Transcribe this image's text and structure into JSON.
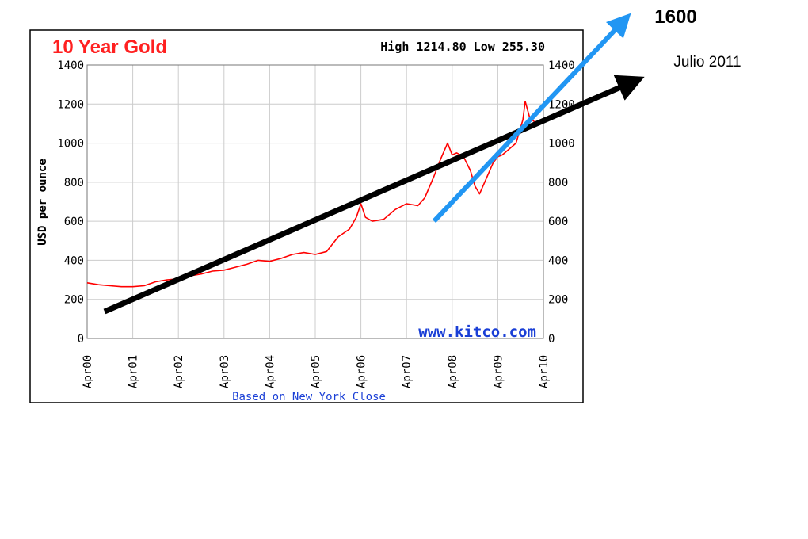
{
  "chart_data": {
    "type": "line",
    "title": "10 Year Gold",
    "stats": "High 1214.80 Low 255.30",
    "ylabel": "USD per ounce",
    "watermark": "www.kitco.com",
    "caption": "Based on New York Close",
    "ylim": [
      0,
      1400
    ],
    "yticks": [
      "0",
      "200",
      "400",
      "600",
      "800",
      "1000",
      "1200",
      "1400"
    ],
    "xlim": [
      0,
      10
    ],
    "xticks": [
      "Apr00",
      "Apr01",
      "Apr02",
      "Apr03",
      "Apr04",
      "Apr05",
      "Apr06",
      "Apr07",
      "Apr08",
      "Apr09",
      "Apr10"
    ],
    "grid": true,
    "series": [
      {
        "color": "#ff0000",
        "x": [
          0,
          0.25,
          0.5,
          0.75,
          1.0,
          1.25,
          1.5,
          1.75,
          2.0,
          2.25,
          2.5,
          2.75,
          3.0,
          3.25,
          3.5,
          3.75,
          4.0,
          4.25,
          4.5,
          4.75,
          5.0,
          5.25,
          5.5,
          5.75,
          5.9,
          6.0,
          6.1,
          6.25,
          6.5,
          6.75,
          7.0,
          7.25,
          7.4,
          7.6,
          7.75,
          7.9,
          8.0,
          8.1,
          8.25,
          8.4,
          8.5,
          8.6,
          8.75,
          8.9,
          9.0,
          9.1,
          9.25,
          9.4,
          9.5,
          9.55,
          9.6,
          9.7,
          9.8,
          9.9,
          10.0
        ],
        "values": [
          285,
          275,
          270,
          265,
          265,
          270,
          290,
          300,
          305,
          320,
          330,
          345,
          350,
          365,
          380,
          400,
          395,
          410,
          430,
          440,
          430,
          445,
          520,
          560,
          620,
          690,
          620,
          600,
          610,
          660,
          690,
          680,
          720,
          830,
          920,
          1000,
          940,
          950,
          930,
          860,
          780,
          740,
          820,
          900,
          930,
          940,
          970,
          1000,
          1080,
          1120,
          1214,
          1130,
          1110,
          1100,
          1120
        ]
      }
    ],
    "annotations": {
      "target_label": "1600",
      "date_label": "Julio 2011",
      "long_trend_color": "#000000",
      "short_trend_color": "#2196f3"
    }
  }
}
